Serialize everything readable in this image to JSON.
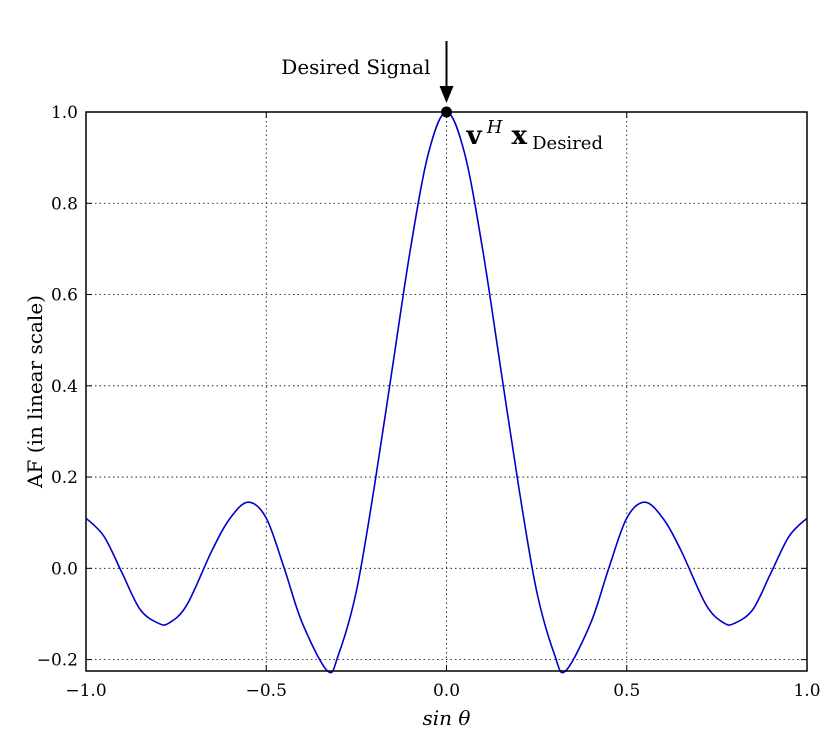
{
  "chart_data": {
    "type": "line",
    "title": "",
    "xlabel": "sin θ",
    "ylabel": "AF (in linear scale)",
    "xlim": [
      -1.0,
      1.0
    ],
    "ylim": [
      -0.225,
      1.0
    ],
    "grid": true,
    "xticks": [
      -1.0,
      -0.5,
      0.0,
      0.5,
      1.0
    ],
    "xtick_labels": [
      "−1.0",
      "−0.5",
      "0.0",
      "0.5",
      "1.0"
    ],
    "yticks": [
      -0.2,
      0.0,
      0.2,
      0.4,
      0.6,
      0.8,
      1.0
    ],
    "ytick_labels": [
      "−0.2",
      "0.0",
      "0.2",
      "0.4",
      "0.6",
      "0.8",
      "1.0"
    ],
    "series": [
      {
        "color": "#0000cc",
        "x": [
          -1.0,
          -0.95,
          -0.9,
          -0.85,
          -0.8,
          -0.77,
          -0.72,
          -0.65,
          -0.6,
          -0.55,
          -0.5,
          -0.45,
          -0.4,
          -0.33,
          -0.3,
          -0.25,
          -0.2,
          -0.15,
          -0.1,
          -0.05,
          0.0,
          0.05,
          0.1,
          0.15,
          0.2,
          0.25,
          0.3,
          0.33,
          0.4,
          0.45,
          0.5,
          0.55,
          0.6,
          0.65,
          0.72,
          0.77,
          0.8,
          0.85,
          0.9,
          0.95,
          1.0
        ],
        "y": [
          0.11,
          0.07,
          -0.01,
          -0.09,
          -0.12,
          -0.12,
          -0.08,
          0.04,
          0.11,
          0.145,
          0.11,
          0.0,
          -0.12,
          -0.225,
          -0.19,
          -0.05,
          0.18,
          0.44,
          0.7,
          0.91,
          1.0,
          0.91,
          0.7,
          0.44,
          0.18,
          -0.05,
          -0.19,
          -0.225,
          -0.12,
          0.0,
          0.11,
          0.145,
          0.11,
          0.04,
          -0.08,
          -0.12,
          -0.12,
          -0.09,
          -0.01,
          0.07,
          0.11
        ]
      }
    ],
    "marker": {
      "x": 0.0,
      "y": 1.0
    },
    "annotations": {
      "desired_signal": "Desired Signal",
      "vector_main": "v",
      "vector_sup": "H",
      "vector_x": "x",
      "vector_sub": "Desired"
    }
  }
}
